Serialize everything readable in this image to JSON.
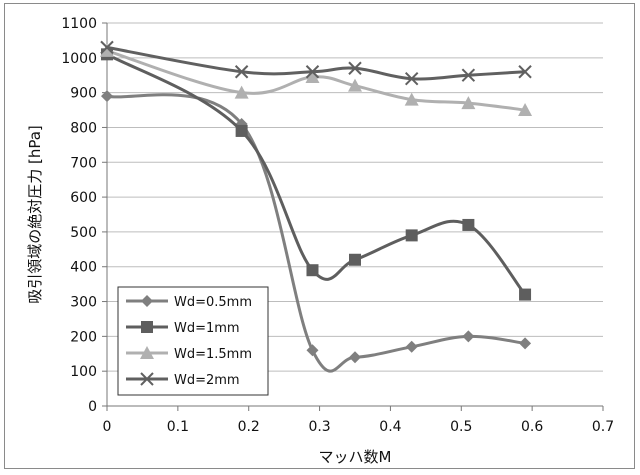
{
  "chart_data": {
    "type": "line",
    "title": "",
    "xlabel": "マッハ数M",
    "ylabel": "吸引領域の絶対圧力 [hPa]",
    "xlim": [
      0,
      0.7
    ],
    "ylim": [
      0,
      1100
    ],
    "xticks": [
      "0",
      "0.1",
      "0.2",
      "0.3",
      "0.4",
      "0.5",
      "0.6",
      "0.7"
    ],
    "yticks": [
      "0",
      "100",
      "200",
      "300",
      "400",
      "500",
      "600",
      "700",
      "800",
      "900",
      "1000",
      "1100"
    ],
    "grid": "horizontal",
    "legend_position": "bottom-left",
    "series": [
      {
        "name": "Wd=0.5mm",
        "marker": "diamond",
        "color": "#7f7f7f",
        "x": [
          0,
          0.19,
          0.29,
          0.35,
          0.43,
          0.51,
          0.59
        ],
        "y": [
          890,
          810,
          160,
          140,
          170,
          200,
          180
        ]
      },
      {
        "name": "Wd=1mm",
        "marker": "square",
        "color": "#5e5e5e",
        "x": [
          0,
          0.19,
          0.29,
          0.35,
          0.43,
          0.51,
          0.59
        ],
        "y": [
          1010,
          790,
          390,
          420,
          490,
          520,
          320
        ]
      },
      {
        "name": "Wd=1.5mm",
        "marker": "triangle",
        "color": "#b0b0b0",
        "x": [
          0,
          0.19,
          0.29,
          0.35,
          0.43,
          0.51,
          0.59
        ],
        "y": [
          1020,
          900,
          945,
          920,
          880,
          870,
          850
        ]
      },
      {
        "name": "Wd=2mm",
        "marker": "x",
        "color": "#606060",
        "x": [
          0,
          0.19,
          0.29,
          0.35,
          0.43,
          0.51,
          0.59
        ],
        "y": [
          1030,
          960,
          960,
          970,
          940,
          950,
          960
        ]
      }
    ]
  }
}
